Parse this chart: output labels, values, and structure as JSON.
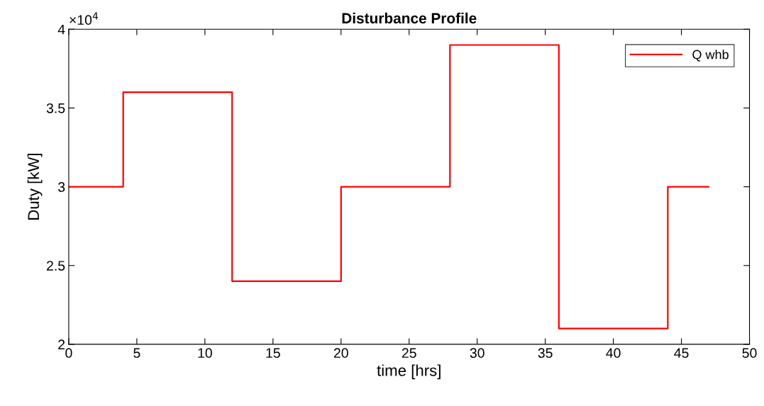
{
  "chart_data": {
    "type": "step",
    "title": "Disturbance Profile",
    "xlabel": "time [hrs]",
    "ylabel": "Duty [kW]",
    "series": [
      {
        "name": "Q whb",
        "color": "#ff0000",
        "x": [
          0,
          4,
          12,
          20,
          28,
          36,
          44,
          47
        ],
        "values": [
          3,
          3.6,
          2.4,
          3,
          3.9,
          2.1,
          3,
          3
        ]
      }
    ],
    "xlim": [
      0,
      50
    ],
    "xticks": [
      0,
      5,
      10,
      15,
      20,
      25,
      30,
      35,
      40,
      45,
      50
    ],
    "ylim": [
      2,
      4
    ],
    "yticks": [
      2,
      2.5,
      3,
      3.5,
      4
    ],
    "annotations": [
      "×10$^{4}$"
    ],
    "legend": "top right",
    "grid": false,
    "marker": "none",
    "line_style": "solid"
  }
}
